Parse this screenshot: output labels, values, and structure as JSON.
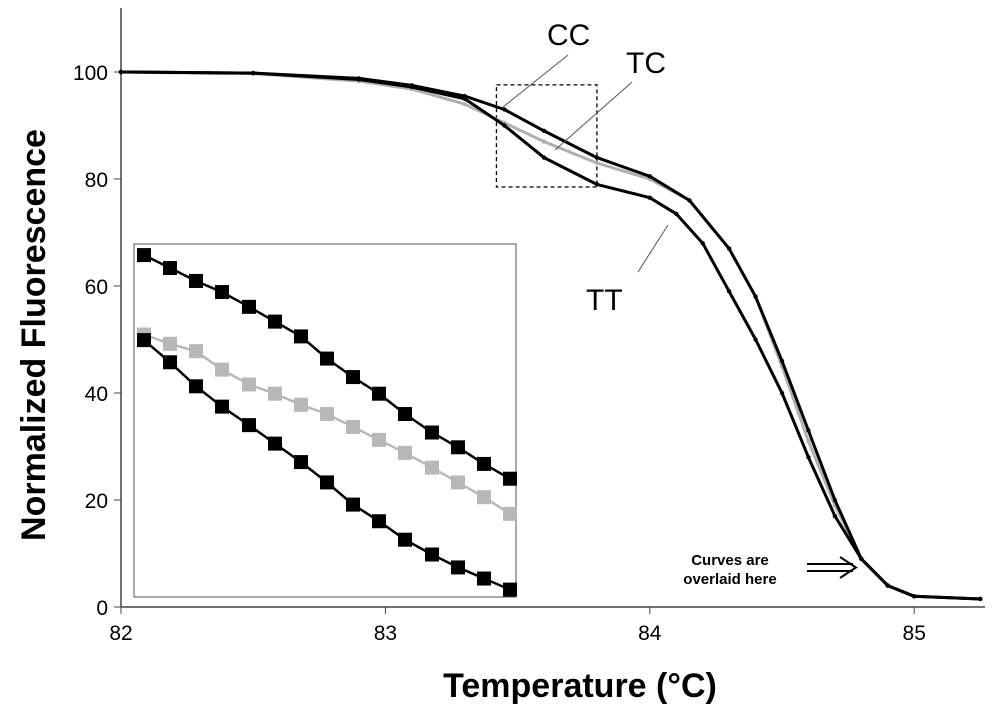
{
  "chart_data": {
    "type": "line",
    "xlabel": "Temperature (°C)",
    "ylabel": "Normalized  Fluorescence",
    "xlim": [
      82,
      85.25
    ],
    "ylim": [
      0,
      112
    ],
    "xticks": [
      "82",
      "83",
      "84",
      "85"
    ],
    "yticks": [
      "0",
      "20",
      "40",
      "60",
      "80",
      "100"
    ],
    "grid": false,
    "series": [
      {
        "name": "CC",
        "color": "#000000",
        "x": [
          82,
          82.5,
          82.9,
          83.1,
          83.3,
          83.45,
          83.6,
          83.8,
          84.0,
          84.15,
          84.3,
          84.4,
          84.5,
          84.6,
          84.7,
          84.8,
          84.9,
          85.0,
          85.25
        ],
        "y": [
          100,
          99.8,
          98.8,
          97.5,
          95.5,
          93,
          89,
          84,
          80.5,
          76,
          67,
          58,
          46,
          33,
          20,
          9,
          4,
          2,
          1.5
        ]
      },
      {
        "name": "TC",
        "color": "#b0b0b0",
        "x": [
          82,
          82.5,
          82.9,
          83.1,
          83.3,
          83.45,
          83.6,
          83.8,
          84.0,
          84.15,
          84.3,
          84.4,
          84.5,
          84.6,
          84.7,
          84.8,
          84.9,
          85.0,
          85.25
        ],
        "y": [
          100,
          99.7,
          98.3,
          96.8,
          94,
          90.5,
          87,
          83,
          80,
          76,
          67,
          58,
          45,
          31,
          19,
          9,
          4,
          2,
          1.5
        ]
      },
      {
        "name": "TT",
        "color": "#000000",
        "x": [
          82,
          82.5,
          82.9,
          83.1,
          83.3,
          83.45,
          83.6,
          83.8,
          84.0,
          84.1,
          84.2,
          84.3,
          84.4,
          84.5,
          84.6,
          84.7,
          84.8,
          84.9,
          85.0,
          85.25
        ],
        "y": [
          100,
          99.8,
          98.6,
          97.2,
          95,
          90,
          84,
          79,
          76.5,
          73.5,
          68,
          59,
          50,
          40,
          28,
          17,
          9,
          4,
          2,
          1.5
        ]
      }
    ],
    "zoom_box": {
      "x": [
        83.42,
        83.8
      ],
      "y": [
        78.5,
        97.6
      ]
    },
    "inset": {
      "x": [
        83.42,
        83.447,
        83.474,
        83.501,
        83.529,
        83.556,
        83.583,
        83.61,
        83.637,
        83.664,
        83.691,
        83.719,
        83.746,
        83.773,
        83.8
      ],
      "series": [
        {
          "name": "CC",
          "color": "#000000",
          "y": [
            97.0,
            96.3,
            95.6,
            95.0,
            94.2,
            93.4,
            92.6,
            91.4,
            90.4,
            89.5,
            88.4,
            87.4,
            86.6,
            85.7,
            84.9
          ]
        },
        {
          "name": "TC",
          "color": "#b8b8b8",
          "y": [
            92.7,
            92.2,
            91.8,
            90.8,
            90.0,
            89.5,
            88.9,
            88.4,
            87.7,
            87.0,
            86.3,
            85.5,
            84.7,
            83.9,
            83.0
          ]
        },
        {
          "name": "TT",
          "color": "#000000",
          "y": [
            92.4,
            91.2,
            89.9,
            88.8,
            87.8,
            86.8,
            85.8,
            84.7,
            83.5,
            82.6,
            81.6,
            80.8,
            80.1,
            79.5,
            78.9
          ]
        }
      ]
    },
    "annotations": {
      "cc": "CC",
      "tc": "TC",
      "tt": "TT",
      "overlay_line1": "Curves are",
      "overlay_line2": "overlaid here"
    }
  }
}
